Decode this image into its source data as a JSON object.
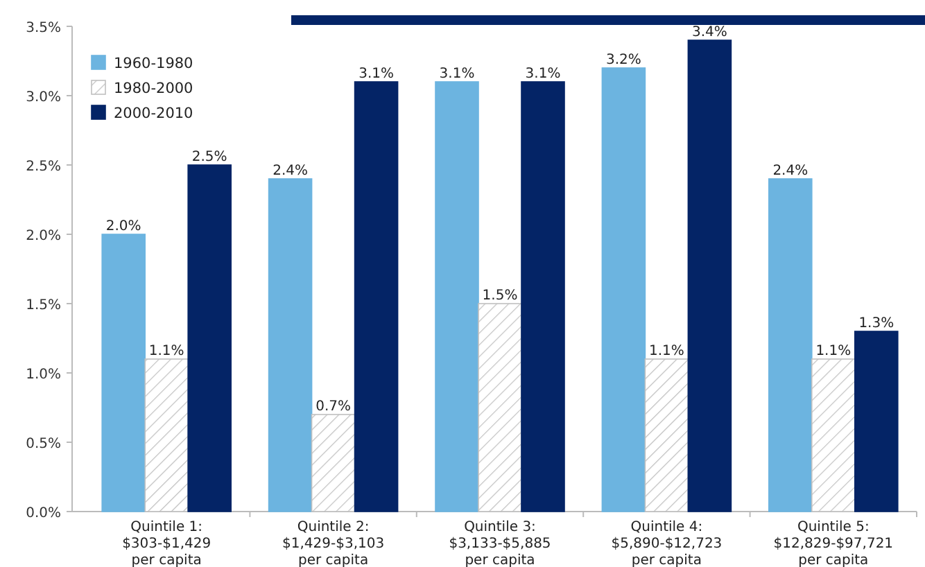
{
  "chart_data": {
    "type": "bar",
    "categories": [
      "Quintile 1:\n$303-$1,429\nper capita",
      "Quintile 2:\n$1,429-$3,103\nper capita",
      "Quintile 3:\n$3,133-$5,885\nper capita",
      "Quintile 4:\n$5,890-$12,723\nper capita",
      "Quintile 5:\n$12,829-$97,721\nper capita"
    ],
    "series": [
      {
        "name": "1960-1980",
        "color": "#6cb4e0",
        "values": [
          2.0,
          2.4,
          3.1,
          3.2,
          2.4
        ],
        "value_labels": [
          "2.0%",
          "2.4%",
          "3.1%",
          "3.2%",
          "2.4%"
        ]
      },
      {
        "name": "1980-2000",
        "color": "#c0c0c0",
        "values": [
          1.1,
          0.7,
          1.5,
          1.1,
          1.1
        ],
        "value_labels": [
          "1.1%",
          "0.7%",
          "1.5%",
          "1.1%",
          "1.1%"
        ]
      },
      {
        "name": "2000-2010",
        "color": "#042466",
        "values": [
          2.5,
          3.1,
          3.1,
          3.4,
          1.3
        ],
        "value_labels": [
          "2.5%",
          "3.1%",
          "3.1%",
          "3.4%",
          "1.3%"
        ]
      }
    ],
    "ylim": [
      0,
      3.5
    ],
    "yticks": [
      {
        "value": 0,
        "label": "0.0%"
      },
      {
        "value": 0.5,
        "label": "0.5%"
      },
      {
        "value": 1,
        "label": "1.0%"
      },
      {
        "value": 1.5,
        "label": "1.5%"
      },
      {
        "value": 2,
        "label": "2.0%"
      },
      {
        "value": 2.5,
        "label": "2.5%"
      },
      {
        "value": 3,
        "label": "3.0%"
      },
      {
        "value": 3.5,
        "label": "3.5%"
      }
    ],
    "legend": "top left",
    "grid": false
  }
}
